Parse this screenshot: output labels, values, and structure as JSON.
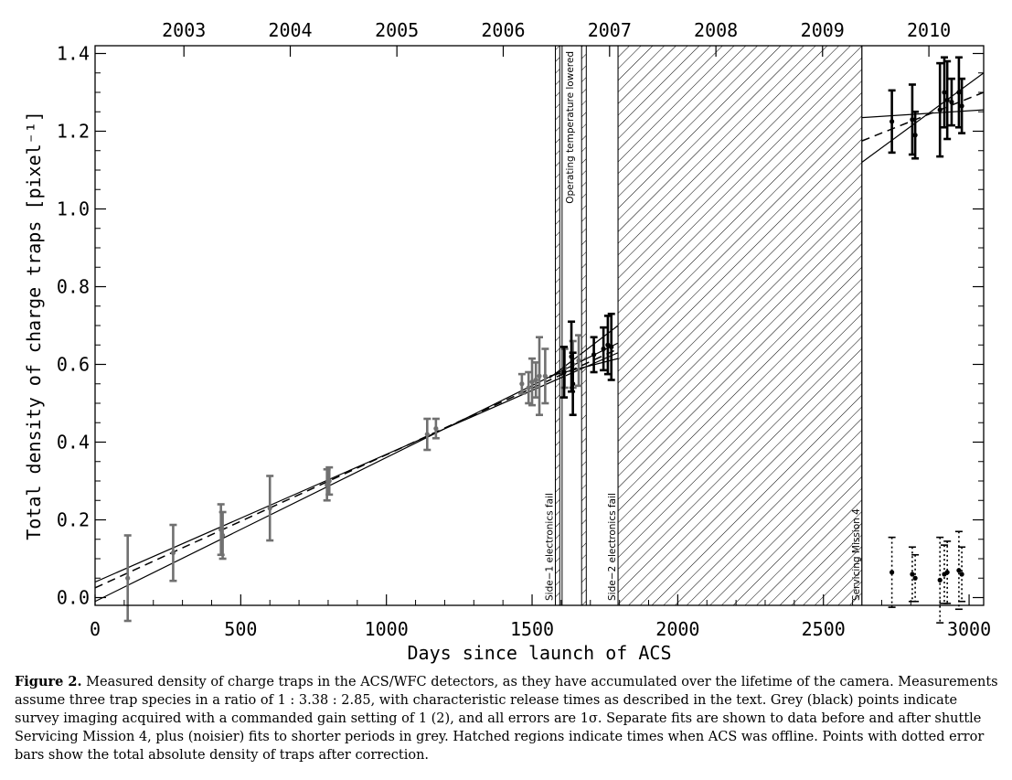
{
  "chart_data": {
    "type": "scatter",
    "title": "",
    "xlabel": "Days since launch of ACS",
    "ylabel": "Total density of charge traps [pixel⁻¹]",
    "xlim": [
      0,
      3050
    ],
    "ylim": [
      -0.02,
      1.42
    ],
    "x_ticks": [
      0,
      500,
      1000,
      1500,
      2000,
      2500,
      3000
    ],
    "y_ticks": [
      0.0,
      0.2,
      0.4,
      0.6,
      0.8,
      1.0,
      1.2,
      1.4
    ],
    "x_tick_labels": [
      "0",
      "500",
      "1000",
      "1500",
      "2000",
      "2500",
      "3000"
    ],
    "y_tick_labels": [
      "0.0",
      "0.2",
      "0.4",
      "0.6",
      "0.8",
      "1.0",
      "1.2",
      "1.4"
    ],
    "top_axis_years": [
      {
        "label": "2003",
        "day": 305
      },
      {
        "label": "2004",
        "day": 670
      },
      {
        "label": "2005",
        "day": 1036
      },
      {
        "label": "2006",
        "day": 1401
      },
      {
        "label": "2007",
        "day": 1766
      },
      {
        "label": "2008",
        "day": 2131
      },
      {
        "label": "2009",
        "day": 2497
      },
      {
        "label": "2010",
        "day": 2862
      }
    ],
    "offline_periods": [
      {
        "x0": 1580,
        "x1": 1595,
        "label": "Side−1 electronics fail"
      },
      {
        "x0": 1670,
        "x1": 1686,
        "label": ""
      },
      {
        "x0": 1795,
        "x1": 2632,
        "label": "Side−2 electronics fail"
      }
    ],
    "event_lines": [
      {
        "x": 1580,
        "label": "Side−1 electronics fail"
      },
      {
        "x": 1603,
        "label": "Operating temperature lowered"
      },
      {
        "x": 1795,
        "label": "Side−2 electronics fail"
      },
      {
        "x": 2632,
        "label": "Servicing Mission 4"
      }
    ],
    "series": [
      {
        "name": "Grey: commanded gain setting 1",
        "color": "#707070",
        "points": [
          {
            "x": 112,
            "y": 0.05,
            "err": 0.11
          },
          {
            "x": 268,
            "y": 0.115,
            "err": 0.072
          },
          {
            "x": 432,
            "y": 0.175,
            "err": 0.065
          },
          {
            "x": 438,
            "y": 0.16,
            "err": 0.06
          },
          {
            "x": 600,
            "y": 0.23,
            "err": 0.083
          },
          {
            "x": 796,
            "y": 0.29,
            "err": 0.04
          },
          {
            "x": 804,
            "y": 0.3,
            "err": 0.035
          },
          {
            "x": 1140,
            "y": 0.42,
            "err": 0.04
          },
          {
            "x": 1170,
            "y": 0.435,
            "err": 0.025
          },
          {
            "x": 1465,
            "y": 0.55,
            "err": 0.025
          },
          {
            "x": 1488,
            "y": 0.54,
            "err": 0.04
          },
          {
            "x": 1500,
            "y": 0.555,
            "err": 0.06
          },
          {
            "x": 1513,
            "y": 0.56,
            "err": 0.045
          },
          {
            "x": 1525,
            "y": 0.57,
            "err": 0.1
          },
          {
            "x": 1545,
            "y": 0.57,
            "err": 0.07
          },
          {
            "x": 1612,
            "y": 0.59,
            "err": 0.05
          },
          {
            "x": 1640,
            "y": 0.6,
            "err": 0.06
          },
          {
            "x": 1660,
            "y": 0.61,
            "err": 0.065
          }
        ]
      },
      {
        "name": "Black: commanded gain setting 2",
        "color": "#000000",
        "points": [
          {
            "x": 1610,
            "y": 0.58,
            "err": 0.065
          },
          {
            "x": 1635,
            "y": 0.62,
            "err": 0.09
          },
          {
            "x": 1640,
            "y": 0.55,
            "err": 0.08
          },
          {
            "x": 1712,
            "y": 0.625,
            "err": 0.045
          },
          {
            "x": 1745,
            "y": 0.64,
            "err": 0.055
          },
          {
            "x": 1760,
            "y": 0.65,
            "err": 0.075
          },
          {
            "x": 1772,
            "y": 0.645,
            "err": 0.085
          },
          {
            "x": 2735,
            "y": 1.225,
            "err": 0.08
          },
          {
            "x": 2805,
            "y": 1.23,
            "err": 0.09
          },
          {
            "x": 2815,
            "y": 1.19,
            "err": 0.06
          },
          {
            "x": 2900,
            "y": 1.255,
            "err": 0.12
          },
          {
            "x": 2915,
            "y": 1.3,
            "err": 0.09
          },
          {
            "x": 2925,
            "y": 1.28,
            "err": 0.1
          },
          {
            "x": 2940,
            "y": 1.275,
            "err": 0.06
          },
          {
            "x": 2965,
            "y": 1.3,
            "err": 0.09
          },
          {
            "x": 2975,
            "y": 1.265,
            "err": 0.07
          }
        ]
      },
      {
        "name": "Total absolute density after correction (dotted error bars)",
        "color": "#000000",
        "points": [
          {
            "x": 2735,
            "y": 0.065,
            "err": 0.09
          },
          {
            "x": 2805,
            "y": 0.06,
            "err": 0.07
          },
          {
            "x": 2815,
            "y": 0.05,
            "err": 0.06
          },
          {
            "x": 2900,
            "y": 0.045,
            "err": 0.11
          },
          {
            "x": 2915,
            "y": 0.06,
            "err": 0.075
          },
          {
            "x": 2925,
            "y": 0.065,
            "err": 0.08
          },
          {
            "x": 2965,
            "y": 0.07,
            "err": 0.1
          },
          {
            "x": 2975,
            "y": 0.06,
            "err": 0.07
          }
        ]
      }
    ],
    "fits": [
      {
        "name": "pre-SM4 fit",
        "style": "dashed",
        "x0": 0,
        "y0": 0.025,
        "x1": 1795,
        "y1": 0.64
      },
      {
        "name": "pre-SM4 bound upper",
        "style": "solid",
        "x0": 0,
        "y0": 0.04,
        "x1": 1795,
        "y1": 0.63
      },
      {
        "name": "pre-SM4 bound lower",
        "style": "solid",
        "x0": 0,
        "y0": -0.01,
        "x1": 1795,
        "y1": 0.655
      },
      {
        "name": "grey short fit a",
        "style": "solid",
        "x0": 1560,
        "y0": 0.565,
        "x1": 1795,
        "y1": 0.7
      },
      {
        "name": "grey short fit b",
        "style": "solid",
        "x0": 1560,
        "y0": 0.57,
        "x1": 1795,
        "y1": 0.615
      },
      {
        "name": "post-SM4 fit",
        "style": "dashed",
        "x0": 2632,
        "y0": 1.175,
        "x1": 3050,
        "y1": 1.3
      },
      {
        "name": "post-SM4 bound upper",
        "style": "solid",
        "x0": 2632,
        "y0": 1.235,
        "x1": 3050,
        "y1": 1.255
      },
      {
        "name": "post-SM4 bound lower",
        "style": "solid",
        "x0": 2632,
        "y0": 1.12,
        "x1": 3050,
        "y1": 1.35
      }
    ],
    "grid": false
  },
  "caption": {
    "label": "Figure 2.",
    "text": " Measured density of charge traps in the ACS/WFC detectors, as they have accumulated over the lifetime of the camera. Measurements assume three trap species in a ratio of 1 : 3.38 : 2.85, with characteristic release times as described in the text. Grey (black) points indicate survey imaging acquired with a commanded gain setting of 1 (2), and all errors are 1σ. Separate fits are shown to data before and after shuttle Servicing Mission 4, plus (noisier) fits to shorter periods in grey. Hatched regions indicate times when ACS was offline. Points with dotted error bars show the total absolute density of traps after correction."
  }
}
